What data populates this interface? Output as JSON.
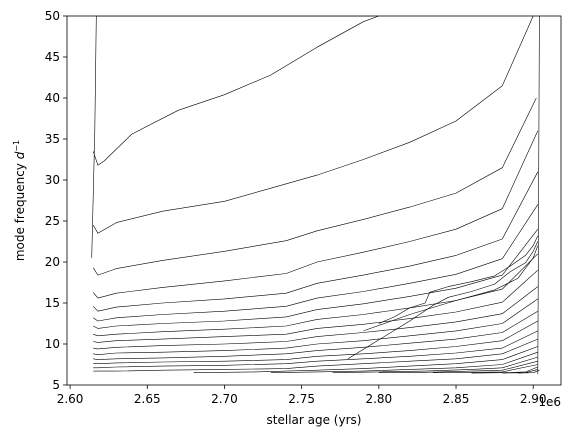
{
  "chart_data": {
    "type": "line",
    "title": "",
    "xlabel": "stellar age (yrs)",
    "ylabel": "mode frequency $d^{-1}$",
    "x_offset_label": "1e6",
    "xlim": [
      2.598,
      2.918
    ],
    "ylim": [
      5,
      50
    ],
    "x_ticks": [
      2.6,
      2.65,
      2.7,
      2.75,
      2.8,
      2.85,
      2.9
    ],
    "x_tick_labels": [
      "2.60",
      "2.65",
      "2.70",
      "2.75",
      "2.80",
      "2.85",
      "2.90"
    ],
    "y_ticks": [
      5,
      10,
      15,
      20,
      25,
      30,
      35,
      40,
      45,
      50
    ],
    "y_tick_labels": [
      "5",
      "10",
      "15",
      "20",
      "25",
      "30",
      "35",
      "40",
      "45",
      "50"
    ],
    "grid": false,
    "line_color": "#000000",
    "series": [
      {
        "x": [
          2.614,
          2.616,
          2.617,
          2.62,
          2.65,
          2.7,
          2.74,
          2.77,
          2.795
        ],
        "y": [
          20.5,
          36,
          50,
          50,
          50,
          50,
          50,
          50,
          50
        ],
        "note_free": true
      },
      {
        "x": [
          2.615,
          2.618,
          2.622,
          2.64,
          2.67,
          2.7,
          2.73,
          2.76,
          2.79,
          2.8
        ],
        "y": [
          33.5,
          31.8,
          32.3,
          35.6,
          38.5,
          40.4,
          42.8,
          46.2,
          49.3,
          50
        ]
      },
      {
        "x": [
          2.615,
          2.618,
          2.63,
          2.66,
          2.7,
          2.73,
          2.76,
          2.79,
          2.82,
          2.85,
          2.88,
          2.9
        ],
        "y": [
          24.5,
          23.5,
          24.8,
          26.2,
          27.4,
          29.0,
          30.6,
          32.5,
          34.6,
          37.2,
          41.5,
          50
        ]
      },
      {
        "x": [
          2.615,
          2.618,
          2.63,
          2.66,
          2.7,
          2.74,
          2.76,
          2.79,
          2.82,
          2.85,
          2.88,
          2.902
        ],
        "y": [
          19.3,
          18.4,
          19.2,
          20.2,
          21.3,
          22.6,
          23.8,
          25.2,
          26.7,
          28.4,
          31.5,
          40
        ]
      },
      {
        "x": [
          2.615,
          2.618,
          2.63,
          2.66,
          2.7,
          2.74,
          2.76,
          2.79,
          2.82,
          2.85,
          2.88,
          2.903
        ],
        "y": [
          16.3,
          15.6,
          16.2,
          16.9,
          17.7,
          18.6,
          20.0,
          21.2,
          22.5,
          24.0,
          26.5,
          36
        ]
      },
      {
        "x": [
          2.615,
          2.618,
          2.63,
          2.66,
          2.7,
          2.74,
          2.76,
          2.79,
          2.82,
          2.85,
          2.88,
          2.903
        ],
        "y": [
          14.6,
          14.0,
          14.5,
          15.0,
          15.5,
          16.2,
          17.4,
          18.4,
          19.5,
          20.8,
          22.8,
          31
        ]
      },
      {
        "x": [
          2.615,
          2.618,
          2.63,
          2.66,
          2.7,
          2.74,
          2.76,
          2.79,
          2.82,
          2.85,
          2.88,
          2.903
        ],
        "y": [
          13.2,
          12.8,
          13.2,
          13.6,
          14.0,
          14.6,
          15.6,
          16.4,
          17.4,
          18.5,
          20.4,
          27
        ]
      },
      {
        "x": [
          2.615,
          2.618,
          2.63,
          2.66,
          2.7,
          2.74,
          2.76,
          2.79,
          2.82,
          2.85,
          2.88,
          2.903
        ],
        "y": [
          12.2,
          11.9,
          12.2,
          12.5,
          12.8,
          13.3,
          14.2,
          14.9,
          15.8,
          16.8,
          18.4,
          24
        ]
      },
      {
        "x": [
          2.615,
          2.618,
          2.63,
          2.66,
          2.7,
          2.74,
          2.76,
          2.79,
          2.82,
          2.85,
          2.88,
          2.903
        ],
        "y": [
          11.2,
          11.0,
          11.2,
          11.5,
          11.8,
          12.2,
          13.0,
          13.6,
          14.4,
          15.3,
          16.7,
          21
        ]
      },
      {
        "x": [
          2.615,
          2.618,
          2.63,
          2.66,
          2.7,
          2.74,
          2.76,
          2.79,
          2.82,
          2.85,
          2.88,
          2.903
        ],
        "y": [
          10.3,
          10.2,
          10.4,
          10.6,
          10.9,
          11.2,
          11.9,
          12.4,
          13.1,
          13.9,
          15.1,
          19
        ]
      },
      {
        "x": [
          2.615,
          2.618,
          2.63,
          2.66,
          2.7,
          2.74,
          2.76,
          2.79,
          2.82,
          2.85,
          2.88,
          2.903
        ],
        "y": [
          9.5,
          9.4,
          9.6,
          9.8,
          10.0,
          10.3,
          10.9,
          11.4,
          12.0,
          12.7,
          13.7,
          17
        ]
      },
      {
        "x": [
          2.615,
          2.618,
          2.63,
          2.66,
          2.7,
          2.74,
          2.76,
          2.79,
          2.82,
          2.85,
          2.88,
          2.903
        ],
        "y": [
          8.8,
          8.7,
          8.9,
          9.0,
          9.2,
          9.5,
          10.0,
          10.4,
          11.0,
          11.6,
          12.5,
          15.5
        ]
      },
      {
        "x": [
          2.615,
          2.618,
          2.63,
          2.66,
          2.7,
          2.74,
          2.76,
          2.79,
          2.82,
          2.85,
          2.88,
          2.903
        ],
        "y": [
          8.2,
          8.1,
          8.2,
          8.3,
          8.5,
          8.8,
          9.2,
          9.6,
          10.1,
          10.6,
          11.4,
          14
        ]
      },
      {
        "x": [
          2.615,
          2.618,
          2.63,
          2.66,
          2.7,
          2.74,
          2.76,
          2.79,
          2.82,
          2.85,
          2.88,
          2.903
        ],
        "y": [
          7.6,
          7.6,
          7.7,
          7.8,
          7.9,
          8.1,
          8.5,
          8.8,
          9.2,
          9.7,
          10.4,
          12.8
        ]
      },
      {
        "x": [
          2.615,
          2.618,
          2.63,
          2.66,
          2.7,
          2.74,
          2.76,
          2.79,
          2.82,
          2.85,
          2.88,
          2.903
        ],
        "y": [
          7.1,
          7.1,
          7.2,
          7.3,
          7.4,
          7.6,
          7.9,
          8.2,
          8.5,
          8.9,
          9.5,
          11.6
        ]
      },
      {
        "x": [
          2.615,
          2.63,
          2.66,
          2.7,
          2.74,
          2.76,
          2.79,
          2.82,
          2.85,
          2.88,
          2.903
        ],
        "y": [
          6.7,
          6.7,
          6.8,
          6.9,
          7.0,
          7.3,
          7.6,
          7.9,
          8.2,
          8.8,
          10.6
        ]
      },
      {
        "x": [
          2.68,
          2.72,
          2.76,
          2.79,
          2.82,
          2.85,
          2.88,
          2.903
        ],
        "y": [
          6.5,
          6.6,
          6.8,
          7.0,
          7.3,
          7.6,
          8.1,
          9.7
        ]
      },
      {
        "x": [
          2.73,
          2.76,
          2.79,
          2.82,
          2.85,
          2.88,
          2.903
        ],
        "y": [
          6.5,
          6.6,
          6.7,
          6.9,
          7.1,
          7.5,
          9.0
        ]
      },
      {
        "x": [
          2.77,
          2.8,
          2.83,
          2.86,
          2.88,
          2.903
        ],
        "y": [
          6.5,
          6.6,
          6.7,
          6.9,
          7.1,
          8.4
        ]
      },
      {
        "x": [
          2.8,
          2.83,
          2.86,
          2.88,
          2.903
        ],
        "y": [
          6.5,
          6.55,
          6.7,
          6.8,
          7.9
        ]
      },
      {
        "x": [
          2.835,
          2.86,
          2.88,
          2.903
        ],
        "y": [
          6.5,
          6.55,
          6.6,
          7.5
        ]
      },
      {
        "x": [
          2.86,
          2.88,
          2.895,
          2.903
        ],
        "y": [
          6.45,
          6.5,
          6.6,
          7.2
        ]
      },
      {
        "x": [
          2.88,
          2.895,
          2.903
        ],
        "y": [
          6.45,
          6.5,
          6.9
        ]
      },
      {
        "x": [
          2.89,
          2.9,
          2.904
        ],
        "y": [
          6.45,
          6.5,
          6.8
        ]
      },
      {
        "x": [
          2.78,
          2.8,
          2.82,
          2.835,
          2.845,
          2.86,
          2.875,
          2.885,
          2.895,
          2.9,
          2.903
        ],
        "y": [
          8.2,
          10.5,
          12.8,
          14.7,
          15.7,
          16.4,
          17.3,
          18.8,
          19.9,
          21.3,
          22.5
        ]
      },
      {
        "x": [
          2.8,
          2.81,
          2.82,
          2.83,
          2.833,
          2.845,
          2.86,
          2.875,
          2.885,
          2.895,
          2.9,
          2.903
        ],
        "y": [
          12.5,
          13.3,
          14.4,
          15.0,
          16.3,
          17.0,
          17.6,
          18.3,
          19.5,
          20.8,
          22.0,
          23.2
        ]
      },
      {
        "x": [
          2.79,
          2.82,
          2.85,
          2.875,
          2.89,
          2.9,
          2.903
        ],
        "y": [
          11.6,
          13.6,
          15.3,
          16.6,
          18.0,
          20.5,
          22.0
        ]
      },
      {
        "x": [
          2.903,
          2.9035,
          2.904
        ],
        "y": [
          6.3,
          28,
          50
        ]
      }
    ]
  }
}
